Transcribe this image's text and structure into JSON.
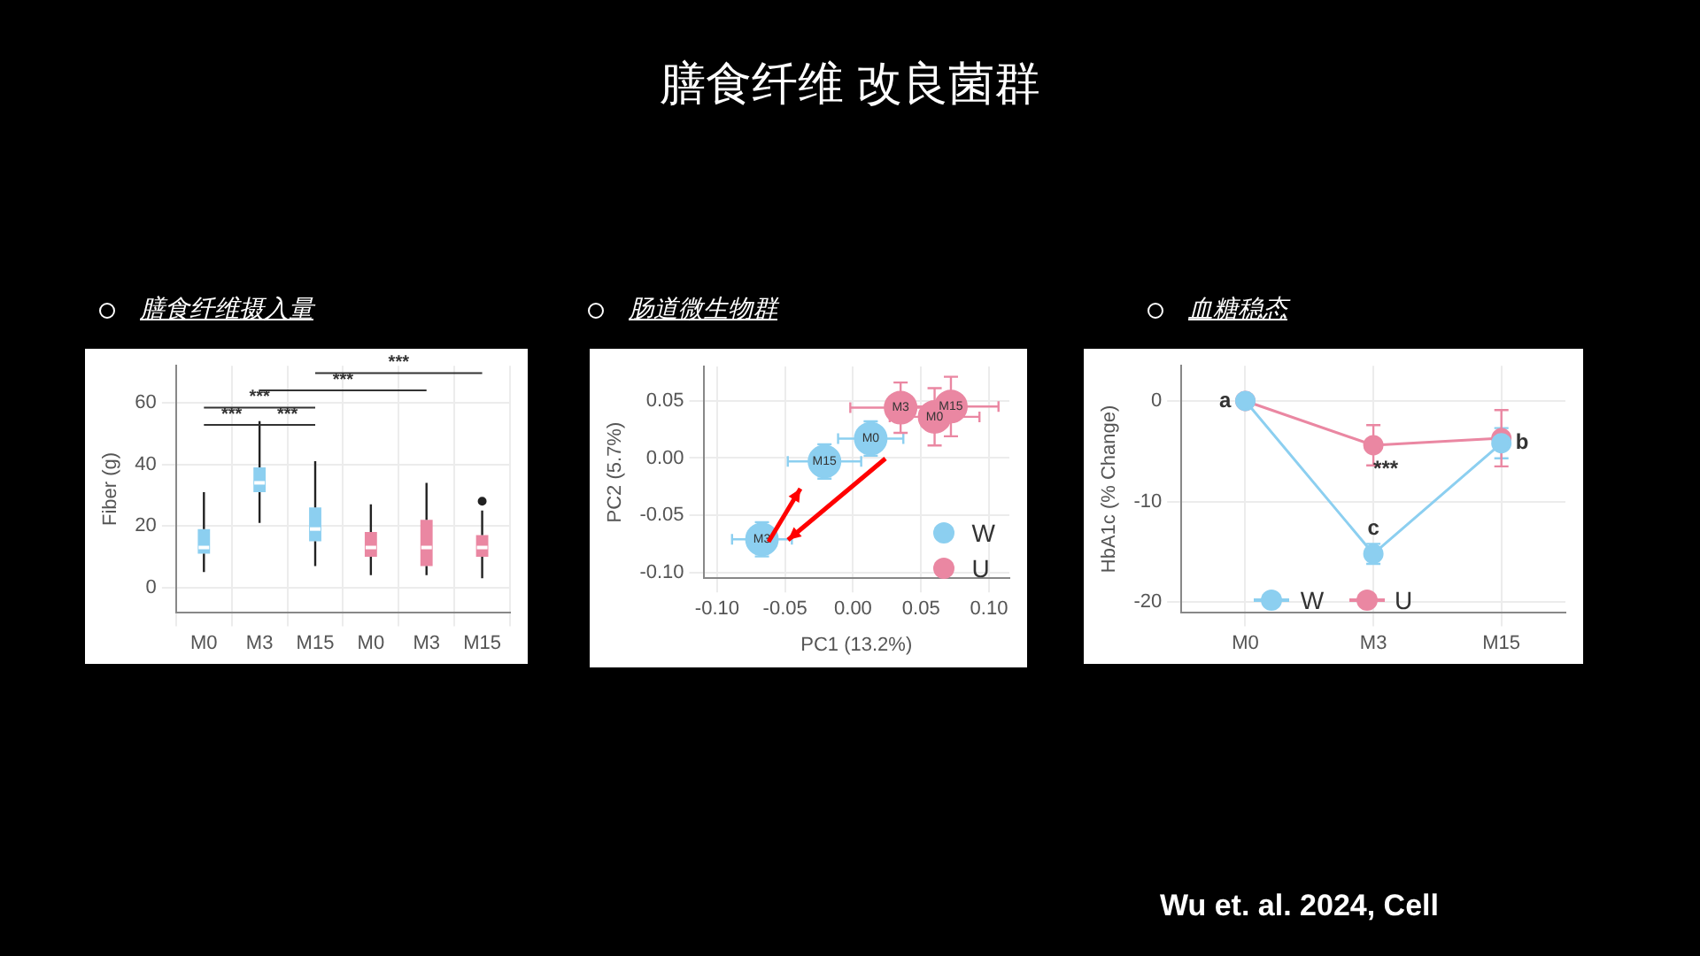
{
  "chart_data": [
    {
      "type": "other",
      "title": "膳食纤维 改良菌群"
    },
    {
      "type": "box",
      "title": "膳食纤维摄入量",
      "ylabel": "Fiber (g)",
      "categories": [
        "M0",
        "M3",
        "M15",
        "M0",
        "M3",
        "M15"
      ],
      "colors": [
        "#8ccff0",
        "#8ccff0",
        "#8ccff0",
        "#ea87a2",
        "#ea87a2",
        "#ea87a2"
      ],
      "boxes": [
        {
          "low": 5,
          "q1": 11,
          "median": 13,
          "q3": 19,
          "high": 31
        },
        {
          "low": 21,
          "q1": 31,
          "median": 34,
          "q3": 39,
          "high": 54
        },
        {
          "low": 7,
          "q1": 15,
          "median": 19,
          "q3": 26,
          "high": 41
        },
        {
          "low": 4,
          "q1": 10,
          "median": 13,
          "q3": 18,
          "high": 27
        },
        {
          "low": 4,
          "q1": 7,
          "median": 13,
          "q3": 22,
          "high": 34
        },
        {
          "low": 3,
          "q1": 10,
          "median": 13,
          "q3": 17,
          "high": 25,
          "outliers": [
            28
          ]
        }
      ],
      "ylim": [
        -8,
        72
      ],
      "yticks": [
        0,
        20,
        40,
        60
      ],
      "grid": true,
      "annotations": [
        "***",
        "***",
        "***",
        "***",
        "***"
      ]
    },
    {
      "type": "scatter",
      "title": "肠道微生物群",
      "xlabel": "PC1 (13.2%)",
      "ylabel": "PC2 (5.7%)",
      "marker": "circle",
      "grid": true,
      "legend": "bottom right",
      "xlim": [
        -0.11,
        0.115
      ],
      "ylim": [
        -0.105,
        0.08
      ],
      "xticks": [
        {
          "value": -0.1,
          "label": "-0.10"
        },
        {
          "value": -0.05,
          "label": "-0.05"
        },
        {
          "value": 0,
          "label": "0.00"
        },
        {
          "value": 0.05,
          "label": "0.05"
        },
        {
          "value": 0.1,
          "label": "0.10"
        }
      ],
      "yticks": [
        {
          "value": -0.1,
          "label": "-0.10"
        },
        {
          "value": -0.05,
          "label": "-0.05"
        },
        {
          "value": 0,
          "label": "0.00"
        },
        {
          "value": 0.05,
          "label": "0.05"
        }
      ],
      "series": [
        {
          "name": "W",
          "color": "#8ccff0",
          "x": [
            -0.067,
            -0.021,
            0.013
          ],
          "values": [
            -0.071,
            -0.003,
            0.017
          ],
          "xerrors": [
            0.022,
            0.027,
            0.024
          ],
          "errors": [
            0.015,
            0.015,
            0.015
          ],
          "value_labels": [
            "M3",
            "M15",
            "M0"
          ]
        },
        {
          "name": "U",
          "color": "#ea87a2",
          "x": [
            0.035,
            0.06,
            0.072
          ],
          "values": [
            0.044,
            0.036,
            0.045
          ],
          "xerrors": [
            0.037,
            0.033,
            0.035
          ],
          "errors": [
            0.022,
            0.025,
            0.026
          ],
          "value_labels": [
            "M3",
            "M0",
            "M15"
          ]
        }
      ]
    },
    {
      "type": "line",
      "title": "血糖稳态",
      "ylabel": "HbA1c (% Change)",
      "categories": [
        "M0",
        "M3",
        "M15"
      ],
      "marker": "circle",
      "grid": true,
      "legend": "bottom",
      "ylim": [
        -21,
        3.5
      ],
      "yticks": [
        0,
        -10,
        -20
      ],
      "series": [
        {
          "name": "W",
          "color": "#8ccff0",
          "values": [
            0,
            -15.2,
            -4.2
          ],
          "errors": [
            null,
            1,
            1.5
          ]
        },
        {
          "name": "U",
          "color": "#ea87a2",
          "values": [
            0,
            -4.4,
            -3.7
          ],
          "errors": [
            null,
            2,
            2.8
          ]
        }
      ],
      "annotations": [
        {
          "text": "a",
          "x": "M0",
          "y": 0
        },
        {
          "text": "c",
          "x": "M3",
          "y": -15.2
        },
        {
          "text": "b",
          "x": "M15",
          "y": -4.2
        },
        "***"
      ]
    },
    {
      "type": "other",
      "annotations": [
        "Wu et. al. 2024, Cell"
      ]
    }
  ]
}
